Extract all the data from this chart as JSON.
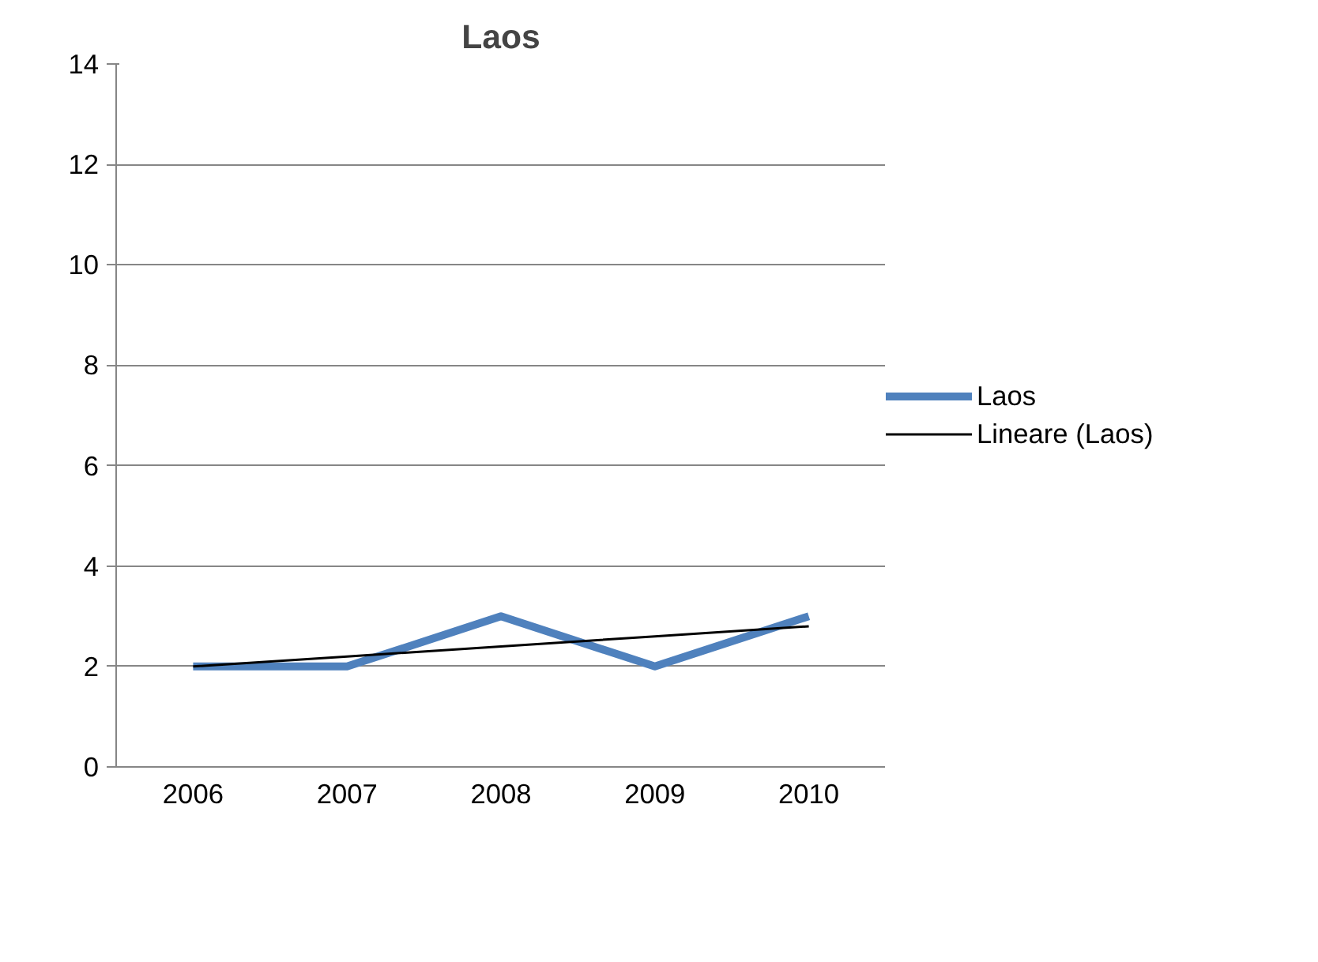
{
  "chart_data": {
    "type": "line",
    "title": "Laos",
    "categories": [
      "2006",
      "2007",
      "2008",
      "2009",
      "2010"
    ],
    "series": [
      {
        "name": "Laos",
        "color": "#4f81bd",
        "values": [
          2,
          2,
          3,
          2,
          3
        ]
      },
      {
        "name": "Lineare (Laos)",
        "color": "#000000",
        "values": [
          2.0,
          2.2,
          2.4,
          2.6,
          2.8
        ]
      }
    ],
    "ylim": [
      0,
      14
    ],
    "yticks": [
      0,
      2,
      4,
      6,
      8,
      10,
      12,
      14
    ],
    "grid": "y",
    "legend": "right",
    "marker": "none",
    "line_style": "solid"
  }
}
